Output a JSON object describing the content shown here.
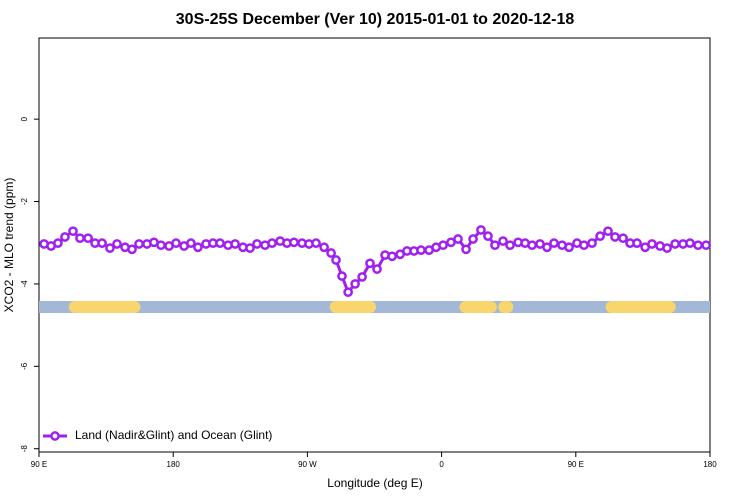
{
  "chart_data": {
    "type": "line",
    "title": "30S-25S December (Ver 10)   2015-01-01 to 2020-12-18",
    "x_label": "Longitude (deg E)",
    "y_label": "XCO2 - MLO trend (ppm)",
    "xlim": [
      90,
      540
    ],
    "ylim": [
      -8.08,
      1.97
    ],
    "xticks": [
      {
        "value": 90,
        "label": "90 E"
      },
      180,
      {
        "value": 270,
        "label": "90 W"
      },
      {
        "value": 360,
        "label": "0"
      },
      {
        "value": 450,
        "label": "90 E"
      },
      {
        "value": 540,
        "label": "180"
      }
    ],
    "yticks": [
      0,
      -2,
      -4,
      -6,
      -8
    ],
    "legend_position": "bottom-left",
    "x": [
      93.4,
      98.1,
      102.7,
      107.4,
      112.8,
      117.5,
      122.9,
      127.6,
      132.3,
      137.6,
      142.3,
      147.7,
      152.4,
      157.1,
      162.4,
      167.1,
      171.8,
      177.2,
      181.9,
      187.3,
      191.9,
      196.6,
      202,
      206.7,
      211.4,
      216.8,
      221.5,
      226.8,
      231.5,
      236.2,
      241.6,
      246.3,
      251.7,
      256.3,
      261,
      266.4,
      271.1,
      275.8,
      281.2,
      285.9,
      289.2,
      293.2,
      297.3,
      302,
      306.7,
      312,
      316.7,
      322.1,
      326.8,
      332.2,
      336.8,
      341.5,
      346.2,
      351.6,
      356.3,
      361,
      366.3,
      371,
      376.4,
      381.1,
      386.4,
      391.1,
      395.8,
      401.2,
      405.9,
      411.3,
      416,
      420.7,
      426,
      430.7,
      435.4,
      440.8,
      445.5,
      450.8,
      455.5,
      460.9,
      466.3,
      471.6,
      476.3,
      481.7,
      486.4,
      491.1,
      496.5,
      501.1,
      506.5,
      511.2,
      516.6,
      521.9,
      526.6,
      532,
      537.4
    ],
    "series": [
      {
        "name": "Land (Nadir&Glint) and Ocean (Glint)",
        "color": "#a020f0",
        "values": [
          -3.03,
          -3.08,
          -3.01,
          -2.86,
          -2.72,
          -2.89,
          -2.89,
          -3.01,
          -3.01,
          -3.13,
          -3.03,
          -3.11,
          -3.16,
          -3.03,
          -3.03,
          -2.99,
          -3.06,
          -3.08,
          -3.01,
          -3.08,
          -3.01,
          -3.11,
          -3.03,
          -3.01,
          -3.01,
          -3.06,
          -3.03,
          -3.11,
          -3.13,
          -3.03,
          -3.06,
          -3.01,
          -2.96,
          -3.01,
          -2.99,
          -3.01,
          -3.03,
          -3.01,
          -3.11,
          -3.25,
          -3.42,
          -3.81,
          -4.2,
          -4.0,
          -3.83,
          -3.5,
          -3.64,
          -3.3,
          -3.33,
          -3.28,
          -3.2,
          -3.2,
          -3.18,
          -3.18,
          -3.11,
          -3.06,
          -2.99,
          -2.91,
          -3.16,
          -2.91,
          -2.69,
          -2.84,
          -3.06,
          -2.96,
          -3.06,
          -2.99,
          -3.01,
          -3.06,
          -3.03,
          -3.11,
          -3.01,
          -3.06,
          -3.11,
          -3.01,
          -3.06,
          -3.01,
          -2.84,
          -2.72,
          -2.86,
          -2.89,
          -3.01,
          -3.01,
          -3.11,
          -3.03,
          -3.08,
          -3.13,
          -3.03,
          -3.03,
          -3.01,
          -3.06,
          -3.06
        ]
      }
    ],
    "surface_bar": {
      "level": -4.56,
      "ocean_color": "#a3b8d6",
      "land_color": "#f9d56e",
      "land": [
        [
          114,
          154
        ],
        [
          289,
          312
        ],
        [
          376,
          393
        ],
        [
          402,
          404
        ],
        [
          474,
          513
        ]
      ]
    }
  }
}
